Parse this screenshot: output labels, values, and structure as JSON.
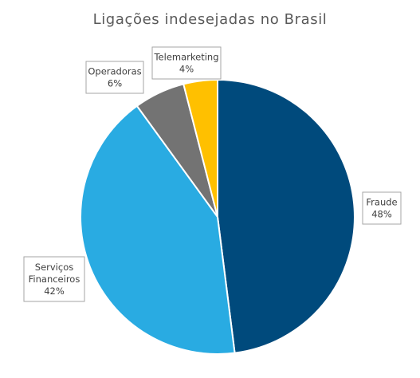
{
  "chart_data": {
    "type": "pie",
    "title": "Ligações indesejadas no Brasil",
    "slices": [
      {
        "name": "Fraude",
        "value": 48,
        "label_lines": [
          "Fraude",
          "48%"
        ],
        "color": "#004a7c"
      },
      {
        "name": "Serviços Financeiros",
        "value": 42,
        "label_lines": [
          "Serviços",
          "Financeiros",
          "42%"
        ],
        "color": "#29abe2"
      },
      {
        "name": "Operadoras",
        "value": 6,
        "label_lines": [
          "Operadoras",
          "6%"
        ],
        "color": "#737373"
      },
      {
        "name": "Telemarketing",
        "value": 4,
        "label_lines": [
          "Telemarketing",
          "4%"
        ],
        "color": "#ffc000"
      }
    ],
    "start_angle": "12 o'clock",
    "direction": "clockwise",
    "legend": "none",
    "data_labels": "callouts"
  }
}
